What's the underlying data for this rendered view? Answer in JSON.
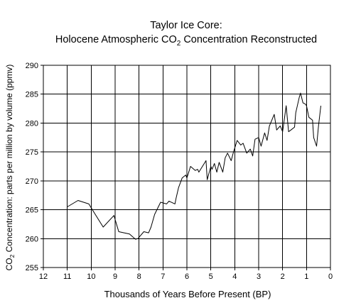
{
  "chart_data": {
    "type": "line",
    "title_line1": "Taylor Ice Core:",
    "title_line2_prefix": "Holocene Atmospheric CO",
    "title_line2_sub": "2",
    "title_line2_suffix": " Concentration Reconstructed",
    "xlabel": "Thousands of Years Before Present (BP)",
    "ylabel_prefix": "CO",
    "ylabel_sub": "2",
    "ylabel_suffix": " Concentration: parts per million by volume (ppmv)",
    "xlim": [
      12,
      0
    ],
    "ylim": [
      255,
      290
    ],
    "x_ticks": [
      12,
      11,
      10,
      9,
      8,
      7,
      6,
      5,
      4,
      3,
      2,
      1,
      0
    ],
    "y_ticks": [
      255,
      260,
      265,
      270,
      275,
      280,
      285,
      290
    ],
    "grid": true,
    "line_color": "#000000",
    "series": [
      {
        "x": [
          11.0,
          10.55,
          10.1,
          9.95,
          9.5,
          9.05,
          8.85,
          8.4,
          8.15,
          8.05,
          7.8,
          7.6,
          7.5,
          7.35,
          7.1,
          6.85,
          6.75,
          6.5,
          6.45,
          6.35,
          6.2,
          6.05,
          6.0,
          5.85,
          5.65,
          5.55,
          5.5,
          5.2,
          5.15,
          5.0,
          4.95,
          4.85,
          4.75,
          4.65,
          4.5,
          4.4,
          4.3,
          4.15,
          4.05,
          3.9,
          3.75,
          3.65,
          3.5,
          3.35,
          3.25,
          3.15,
          3.0,
          2.9,
          2.75,
          2.65,
          2.55,
          2.5,
          2.35,
          2.25,
          2.1,
          2.0,
          1.85,
          1.75,
          1.65,
          1.5,
          1.45,
          1.3,
          1.25,
          1.15,
          1.05,
          1.0,
          0.9,
          0.75,
          0.7,
          0.62,
          0.58,
          0.5,
          0.4
        ],
        "y": [
          265.5,
          266.6,
          266.0,
          265.0,
          262.0,
          264.0,
          261.2,
          260.8,
          259.9,
          260.0,
          261.2,
          261.0,
          262.0,
          264.2,
          266.3,
          266.0,
          266.5,
          266.0,
          267.0,
          268.8,
          270.5,
          271.0,
          270.5,
          272.5,
          271.8,
          272.0,
          271.5,
          273.5,
          270.2,
          272.5,
          272.0,
          273.0,
          271.5,
          273.2,
          271.5,
          274.0,
          274.8,
          273.5,
          275.0,
          277.0,
          276.2,
          276.5,
          274.8,
          275.5,
          274.3,
          277.2,
          277.5,
          276.0,
          278.3,
          277.0,
          279.5,
          280.0,
          281.5,
          278.8,
          279.5,
          278.5,
          283.0,
          278.5,
          278.8,
          279.3,
          281.8,
          284.5,
          285.2,
          283.5,
          283.3,
          283.0,
          281.0,
          280.5,
          277.5,
          276.5,
          276.0,
          279.5,
          283.0
        ]
      }
    ]
  }
}
